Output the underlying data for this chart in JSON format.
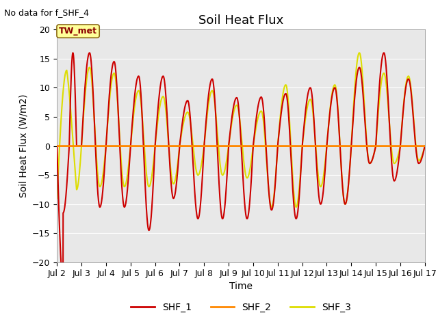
{
  "title": "Soil Heat Flux",
  "no_data_text": "No data for f_SHF_4",
  "tw_met_label": "TW_met",
  "ylabel": "Soil Heat Flux (W/m2)",
  "xlabel": "Time",
  "ylim": [
    -20,
    20
  ],
  "xlim": [
    1,
    16
  ],
  "xtick_labels": [
    "Jul 2",
    "Jul 3",
    "Jul 4",
    "Jul 5",
    "Jul 6",
    "Jul 7",
    "Jul 8",
    "Jul 9",
    "Jul 10",
    "Jul 11",
    "Jul 12",
    "Jul 13",
    "Jul 14",
    "Jul 15",
    "Jul 16",
    "Jul 17"
  ],
  "xtick_positions": [
    1,
    2,
    3,
    4,
    5,
    6,
    7,
    8,
    9,
    10,
    11,
    12,
    13,
    14,
    15,
    16
  ],
  "color_shf1": "#CC0000",
  "color_shf2": "#FF8800",
  "color_shf3": "#DDDD00",
  "background_color": "#E8E8E8",
  "legend_labels": [
    "SHF_1",
    "SHF_2",
    "SHF_3"
  ],
  "title_fontsize": 13,
  "axis_label_fontsize": 10,
  "tick_fontsize": 9,
  "linewidth": 1.5,
  "shf1_peaks": [
    16.0,
    16.0,
    14.5,
    12.0,
    12.0,
    7.8,
    11.5,
    8.3,
    8.4,
    9.0,
    10.0,
    10.0,
    13.5,
    16.0,
    11.5
  ],
  "shf1_troughs": [
    -19.5,
    -10.5,
    -10.5,
    -14.5,
    -9.0,
    -12.5,
    -12.5,
    -12.5,
    -11.0,
    -12.5,
    -10.0,
    -10.0,
    -3.0,
    -6.0,
    -3.0
  ],
  "shf3_peaks": [
    13.0,
    13.5,
    12.5,
    9.5,
    8.5,
    5.8,
    9.5,
    7.0,
    6.0,
    10.5,
    8.0,
    10.5,
    16.0,
    12.5,
    12.0
  ],
  "shf3_troughs": [
    -7.5,
    -7.0,
    -7.0,
    -7.0,
    -6.5,
    -5.0,
    -5.0,
    -5.5,
    -10.5,
    -10.5,
    -7.0,
    -10.0,
    -3.0,
    -3.0,
    -2.5
  ],
  "shf3_init": -9.0,
  "shf1_init": -11.5
}
